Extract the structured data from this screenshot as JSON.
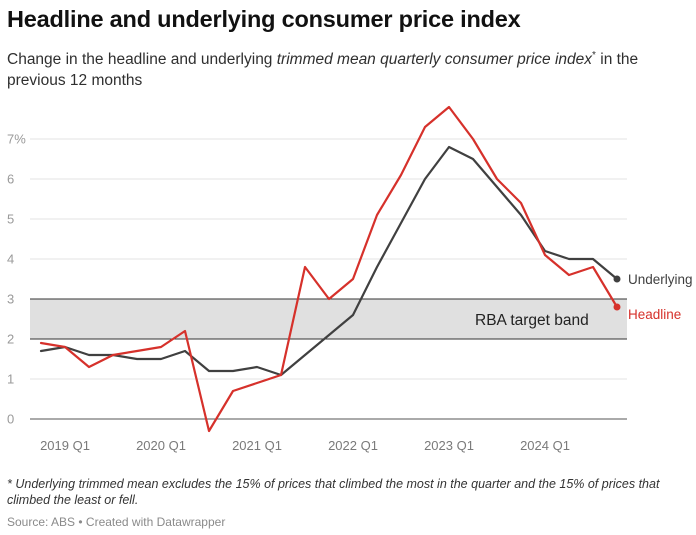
{
  "header": {
    "title": "Headline and underlying consumer price index",
    "subtitle_pre": "Change in the headline and underlying ",
    "subtitle_italic": "trimmed mean quarterly consumer price index",
    "subtitle_mark": "*",
    "subtitle_post": " in the previous 12 months"
  },
  "footer": {
    "note": "* Underlying trimmed mean excludes the 15% of prices that climbed the most in the quarter and the 15% of prices that climbed the least or fell.",
    "source": "Source: ABS • Created with Datawrapper"
  },
  "colors": {
    "headline": "#d6312b",
    "underlying": "#404040",
    "band": "#e0e0e0",
    "grid": "#e3e3e3"
  },
  "chart_data": {
    "type": "line",
    "x": [
      "2018 Q4",
      "2019 Q1",
      "2019 Q2",
      "2019 Q3",
      "2019 Q4",
      "2020 Q1",
      "2020 Q2",
      "2020 Q3",
      "2020 Q4",
      "2021 Q1",
      "2021 Q2",
      "2021 Q3",
      "2021 Q4",
      "2022 Q1",
      "2022 Q2",
      "2022 Q3",
      "2022 Q4",
      "2023 Q1",
      "2023 Q2",
      "2023 Q3",
      "2023 Q4",
      "2024 Q1",
      "2024 Q2",
      "2024 Q3",
      "2024 Q4"
    ],
    "series": [
      {
        "name": "Underlying",
        "values": [
          1.7,
          1.8,
          1.6,
          1.6,
          1.5,
          1.5,
          1.7,
          1.2,
          1.2,
          1.3,
          1.1,
          1.6,
          2.1,
          2.6,
          3.8,
          4.9,
          6.0,
          6.8,
          6.5,
          5.8,
          5.1,
          4.2,
          4.0,
          4.0,
          3.5
        ]
      },
      {
        "name": "Headline",
        "values": [
          1.9,
          1.8,
          1.3,
          1.6,
          1.7,
          1.8,
          2.2,
          -0.3,
          0.7,
          0.9,
          1.1,
          3.8,
          3.0,
          3.5,
          5.1,
          6.1,
          7.3,
          7.8,
          7.0,
          6.0,
          5.4,
          4.1,
          3.6,
          3.8,
          2.8
        ]
      }
    ],
    "x_tick_labels": [
      "2019 Q1",
      "2020 Q1",
      "2021 Q1",
      "2022 Q1",
      "2023 Q1",
      "2024 Q1"
    ],
    "y_ticks": [
      "0",
      "1",
      "2",
      "3",
      "4",
      "5",
      "6",
      "7%"
    ],
    "ylim": [
      -0.35,
      7.9
    ],
    "band": {
      "from": 2,
      "to": 3,
      "label": "RBA target band"
    },
    "end_labels": [
      "Underlying",
      "Headline"
    ]
  }
}
